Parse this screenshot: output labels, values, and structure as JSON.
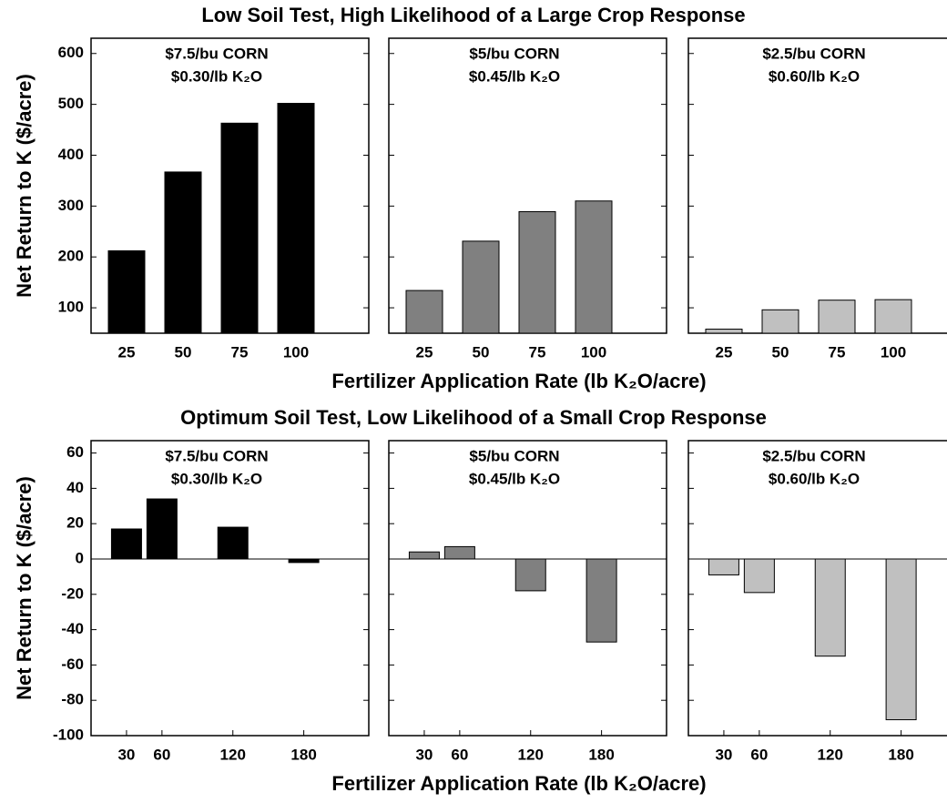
{
  "chart_data": [
    {
      "type": "bar",
      "ylabel": "Net Return to K ($/acre)",
      "annotations": [
        "$7.5/bu CORN",
        "$0.30/lb K₂O"
      ],
      "categories": [
        "25",
        "50",
        "75",
        "100"
      ],
      "values": [
        212,
        367,
        463,
        502
      ],
      "color": "#000000",
      "ylim": [
        50,
        630
      ],
      "yticks": [
        100,
        200,
        300,
        400,
        500,
        600
      ],
      "ytick_labels": true
    },
    {
      "type": "bar",
      "title": "Low Soil Test, High Likelihood of a Large Crop Response",
      "xlabel": "Fertilizer Application Rate (lb K₂O/acre)",
      "annotations": [
        "$5/bu CORN",
        "$0.45/lb K₂O"
      ],
      "categories": [
        "25",
        "50",
        "75",
        "100"
      ],
      "values": [
        134,
        231,
        289,
        310
      ],
      "color": "#808080",
      "ylim": [
        50,
        630
      ],
      "yticks": [
        100,
        200,
        300,
        400,
        500,
        600
      ],
      "ytick_labels": false
    },
    {
      "type": "bar",
      "annotations": [
        "$2.5/bu CORN",
        "$0.60/lb K₂O"
      ],
      "categories": [
        "25",
        "50",
        "75",
        "100"
      ],
      "values": [
        58,
        96,
        115,
        116
      ],
      "color": "#c0c0c0",
      "ylim": [
        50,
        630
      ],
      "yticks": [
        100,
        200,
        300,
        400,
        500,
        600
      ],
      "ytick_labels": false
    },
    {
      "type": "bar",
      "ylabel": "Net Return to K ($/acre)",
      "annotations": [
        "$7.5/bu CORN",
        "$0.30/lb K₂O"
      ],
      "x": [
        30,
        60,
        120,
        180
      ],
      "values": [
        17,
        34,
        18,
        -2
      ],
      "color": "#000000",
      "xlim": [
        0,
        235
      ],
      "xticks": [
        30,
        60,
        120,
        180
      ],
      "ylim": [
        -100,
        67
      ],
      "yticks": [
        -100,
        -80,
        -60,
        -40,
        -20,
        0,
        20,
        40,
        60
      ],
      "ytick_labels": true
    },
    {
      "type": "bar",
      "title": "Optimum Soil Test, Low Likelihood of a Small Crop Response",
      "xlabel": "Fertilizer Application Rate (lb K₂O/acre)",
      "annotations": [
        "$5/bu CORN",
        "$0.45/lb K₂O"
      ],
      "x": [
        30,
        60,
        120,
        180
      ],
      "values": [
        4,
        7,
        -18,
        -47
      ],
      "color": "#808080",
      "xlim": [
        0,
        235
      ],
      "xticks": [
        30,
        60,
        120,
        180
      ],
      "ylim": [
        -100,
        67
      ],
      "yticks": [
        -100,
        -80,
        -60,
        -40,
        -20,
        0,
        20,
        40,
        60
      ],
      "ytick_labels": false
    },
    {
      "type": "bar",
      "annotations": [
        "$2.5/bu CORN",
        "$0.60/lb K₂O"
      ],
      "x": [
        30,
        60,
        120,
        180
      ],
      "values": [
        -9,
        -19,
        -55,
        -91
      ],
      "color": "#c0c0c0",
      "xlim": [
        0,
        235
      ],
      "xticks": [
        30,
        60,
        120,
        180
      ],
      "ylim": [
        -100,
        67
      ],
      "yticks": [
        -100,
        -80,
        -60,
        -40,
        -20,
        0,
        20,
        40,
        60
      ],
      "ytick_labels": false
    }
  ]
}
